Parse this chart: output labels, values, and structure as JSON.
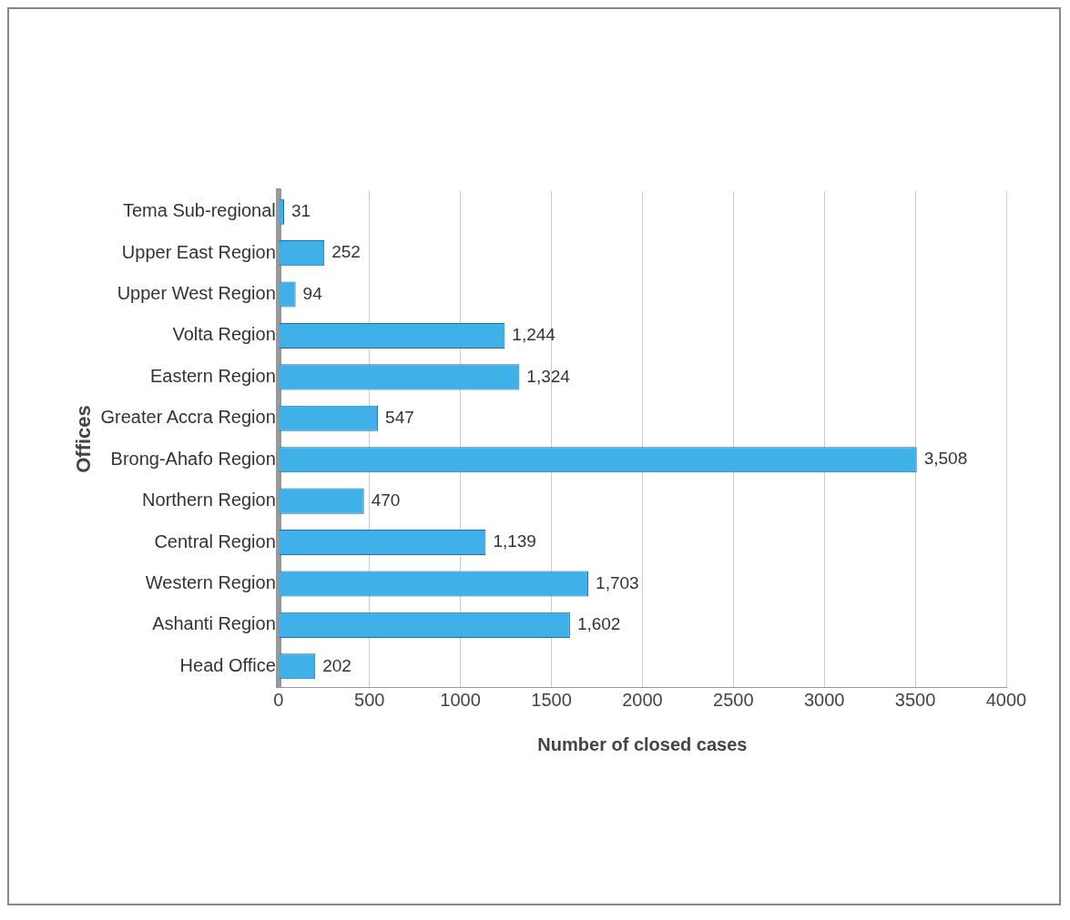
{
  "chart_data": {
    "type": "bar",
    "orientation": "horizontal",
    "xlabel": "Number of closed cases",
    "ylabel": "Offices",
    "categories": [
      "Tema Sub-regional",
      "Upper East Region",
      "Upper West Region",
      "Volta Region",
      "Eastern Region",
      "Greater Accra Region",
      "Brong-Ahafo Region",
      "Northern Region",
      "Central Region",
      "Western Region",
      "Ashanti Region",
      "Head Office"
    ],
    "values": [
      31,
      252,
      94,
      1244,
      1324,
      547,
      3508,
      470,
      1139,
      1703,
      1602,
      202
    ],
    "value_labels": [
      "31",
      "252",
      "94",
      "1,244",
      "1,324",
      "547",
      "3,508",
      "470",
      "1,139",
      "1,703",
      "1,602",
      "202"
    ],
    "color": "#3fb0e8",
    "xlim": [
      0,
      4000
    ],
    "xticks": [
      0,
      500,
      1000,
      1500,
      2000,
      2500,
      3000,
      3500,
      4000
    ],
    "grid": "x",
    "legend": false
  }
}
